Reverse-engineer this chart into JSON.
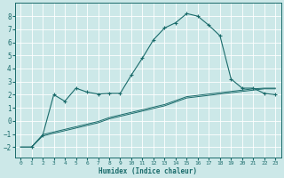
{
  "bg_color": "#cce8e8",
  "grid_color": "#ffffff",
  "line_color": "#1a6b6b",
  "xlabel": "Humidex (Indice chaleur)",
  "xlim": [
    -0.5,
    23.5
  ],
  "ylim": [
    -2.8,
    9.0
  ],
  "xticks": [
    0,
    1,
    2,
    3,
    4,
    5,
    6,
    7,
    8,
    9,
    10,
    11,
    12,
    13,
    14,
    15,
    16,
    17,
    18,
    19,
    20,
    21,
    22,
    23
  ],
  "yticks": [
    -2,
    -1,
    0,
    1,
    2,
    3,
    4,
    5,
    6,
    7,
    8
  ],
  "curve_top_x": [
    1,
    2,
    3,
    4,
    5,
    6,
    7,
    8,
    9,
    10,
    11,
    12,
    13,
    14,
    15,
    16,
    17,
    18,
    19,
    20,
    21,
    22,
    23
  ],
  "curve_top_y": [
    -2.0,
    -1.1,
    2.0,
    1.5,
    2.5,
    2.2,
    2.05,
    2.1,
    2.1,
    3.5,
    4.8,
    6.2,
    7.1,
    7.5,
    8.2,
    8.0,
    7.3,
    6.5,
    3.2,
    2.5,
    2.5,
    2.1,
    2.0
  ],
  "curve_mid_x": [
    0,
    1,
    2,
    3,
    4,
    5,
    6,
    7,
    8,
    9,
    10,
    11,
    12,
    13,
    14,
    15,
    16,
    17,
    18,
    19,
    20,
    21,
    22,
    23
  ],
  "curve_mid_y": [
    -2.0,
    -2.0,
    -1.05,
    -0.85,
    -0.65,
    -0.45,
    -0.25,
    -0.05,
    0.25,
    0.45,
    0.65,
    0.85,
    1.05,
    1.25,
    1.55,
    1.85,
    1.95,
    2.05,
    2.15,
    2.25,
    2.35,
    2.45,
    2.5,
    2.5
  ],
  "curve_bot_x": [
    0,
    1,
    2,
    3,
    4,
    5,
    6,
    7,
    8,
    9,
    10,
    11,
    12,
    13,
    14,
    15,
    16,
    17,
    18,
    19,
    20,
    21,
    22,
    23
  ],
  "curve_bot_y": [
    -2.0,
    -2.0,
    -1.15,
    -0.95,
    -0.75,
    -0.55,
    -0.35,
    -0.15,
    0.15,
    0.35,
    0.55,
    0.75,
    0.95,
    1.15,
    1.45,
    1.75,
    1.85,
    1.95,
    2.05,
    2.15,
    2.25,
    2.35,
    2.45,
    2.45
  ]
}
